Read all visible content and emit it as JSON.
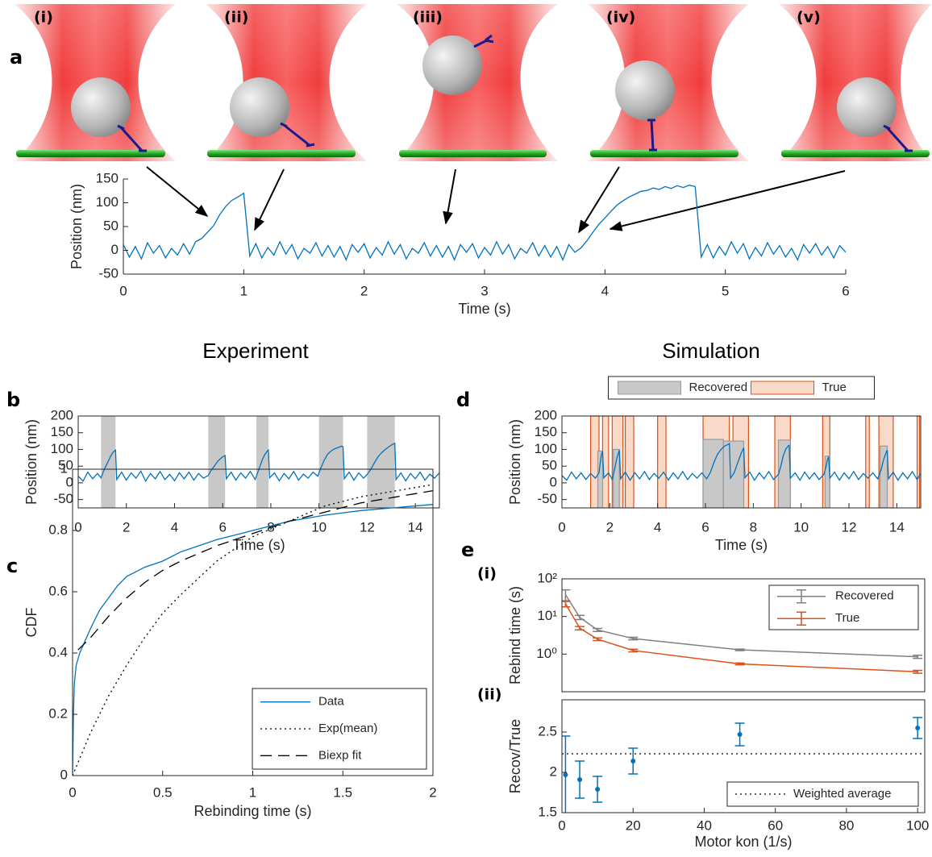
{
  "illustration_labels": [
    "(i)",
    "(ii)",
    "(iii)",
    "(iv)",
    "(v)"
  ],
  "section_titles": [
    "Experiment",
    "Simulation"
  ],
  "panel_labels": [
    "a",
    "b",
    "c",
    "d",
    "e",
    "(i)",
    "(ii)"
  ],
  "chart_data": [
    {
      "type": "line",
      "x_label": "Time (s)",
      "y_label": "Position (nm)",
      "xlim": [
        0,
        6
      ],
      "ylim": [
        -50,
        150
      ],
      "xticks": [
        0,
        1,
        2,
        3,
        4,
        5,
        6
      ],
      "yticks": [
        -50,
        0,
        50,
        100,
        150
      ],
      "box": false,
      "x": [
        0,
        0.05,
        0.1,
        0.15,
        0.2,
        0.25,
        0.3,
        0.35,
        0.4,
        0.45,
        0.5,
        0.55,
        0.6,
        0.65,
        0.7,
        0.75,
        0.8,
        0.85,
        0.9,
        0.95,
        1,
        1.05,
        1.1,
        1.15,
        1.2,
        1.25,
        1.3,
        1.35,
        1.4,
        1.45,
        1.5,
        1.55,
        1.6,
        1.65,
        1.7,
        1.75,
        1.8,
        1.85,
        1.9,
        1.95,
        2,
        2.05,
        2.1,
        2.15,
        2.2,
        2.25,
        2.3,
        2.35,
        2.4,
        2.45,
        2.5,
        2.55,
        2.6,
        2.65,
        2.7,
        2.75,
        2.8,
        2.85,
        2.9,
        2.95,
        3,
        3.05,
        3.1,
        3.15,
        3.2,
        3.25,
        3.3,
        3.35,
        3.4,
        3.45,
        3.5,
        3.55,
        3.6,
        3.65,
        3.7,
        3.75,
        3.8,
        3.85,
        3.9,
        3.95,
        4,
        4.05,
        4.1,
        4.15,
        4.2,
        4.25,
        4.3,
        4.35,
        4.4,
        4.45,
        4.5,
        4.55,
        4.6,
        4.65,
        4.7,
        4.75,
        4.8,
        4.85,
        4.9,
        4.95,
        5,
        5.05,
        5.1,
        5.15,
        5.2,
        5.25,
        5.3,
        5.35,
        5.4,
        5.45,
        5.5,
        5.55,
        5.6,
        5.65,
        5.7,
        5.75,
        5.8,
        5.85,
        5.9,
        5.95,
        6
      ],
      "series": [
        {
          "color": "#0072bd",
          "style": "solid",
          "values": [
            12,
            -14,
            8,
            -18,
            16,
            -6,
            10,
            -16,
            4,
            -10,
            14,
            -8,
            18,
            25,
            38,
            52,
            75,
            92,
            105,
            112,
            120,
            -12,
            14,
            -16,
            6,
            -10,
            18,
            -8,
            12,
            -18,
            4,
            -6,
            16,
            -12,
            10,
            -14,
            8,
            -20,
            12,
            -4,
            14,
            -16,
            6,
            -10,
            18,
            -8,
            12,
            -18,
            4,
            -6,
            16,
            -12,
            10,
            -14,
            8,
            -20,
            12,
            -4,
            14,
            -16,
            6,
            -10,
            18,
            -8,
            12,
            -18,
            4,
            -6,
            16,
            -12,
            10,
            -14,
            8,
            -20,
            12,
            -4,
            5,
            20,
            38,
            55,
            68,
            82,
            95,
            104,
            112,
            118,
            124,
            126,
            131,
            128,
            134,
            130,
            136,
            132,
            137,
            134,
            -14,
            12,
            -16,
            8,
            -10,
            18,
            -6,
            14,
            -18,
            6,
            -12,
            16,
            -8,
            10,
            -14,
            4,
            -20,
            12,
            -6,
            14,
            -10,
            8,
            -16,
            10,
            -4
          ]
        }
      ]
    },
    {
      "type": "line",
      "x_label": "Time (s)",
      "y_label": "Position (nm)",
      "xlim": [
        0,
        15
      ],
      "ylim": [
        -75,
        200
      ],
      "xticks": [
        0,
        2,
        4,
        6,
        8,
        10,
        12,
        14
      ],
      "yticks": [
        -50,
        0,
        50,
        100,
        150,
        200
      ],
      "box": true,
      "shaded": [
        [
          0.95,
          1.55
        ],
        [
          5.4,
          6.1
        ],
        [
          7.4,
          7.9
        ],
        [
          10,
          11
        ],
        [
          12,
          13.15
        ]
      ],
      "shaded_color": "#c8c8c8",
      "x": [
        0,
        0.2,
        0.4,
        0.6,
        0.8,
        0.95,
        1.05,
        1.15,
        1.25,
        1.35,
        1.45,
        1.55,
        1.6,
        1.8,
        2,
        2.2,
        2.4,
        2.6,
        2.8,
        3,
        3.2,
        3.4,
        3.6,
        3.8,
        4,
        4.2,
        4.4,
        4.6,
        4.8,
        5,
        5.2,
        5.4,
        5.5,
        5.6,
        5.7,
        5.8,
        5.9,
        6,
        6.1,
        6.15,
        6.35,
        6.55,
        6.75,
        6.95,
        7.15,
        7.35,
        7.45,
        7.55,
        7.65,
        7.75,
        7.85,
        7.9,
        7.95,
        8.15,
        8.35,
        8.55,
        8.75,
        8.95,
        9.15,
        9.35,
        9.55,
        9.75,
        9.95,
        10.05,
        10.2,
        10.35,
        10.5,
        10.65,
        10.8,
        10.95,
        11,
        11.05,
        11.25,
        11.45,
        11.65,
        11.85,
        12,
        12.15,
        12.3,
        12.45,
        12.6,
        12.75,
        12.9,
        13.05,
        13.15,
        13.2,
        13.4,
        13.6,
        13.8,
        14,
        14.2,
        14.4,
        14.6,
        14.8,
        15
      ],
      "series": [
        {
          "color": "#0072bd",
          "style": "solid",
          "values": [
            20,
            5,
            32,
            12,
            28,
            15,
            35,
            50,
            65,
            80,
            92,
            98,
            10,
            32,
            8,
            30,
            14,
            35,
            5,
            28,
            12,
            34,
            10,
            25,
            6,
            30,
            12,
            32,
            8,
            28,
            14,
            22,
            35,
            45,
            55,
            65,
            72,
            78,
            82,
            12,
            32,
            8,
            30,
            14,
            34,
            10,
            30,
            50,
            70,
            85,
            95,
            98,
            15,
            30,
            6,
            28,
            12,
            34,
            8,
            26,
            14,
            32,
            20,
            40,
            65,
            85,
            95,
            102,
            106,
            110,
            108,
            12,
            32,
            8,
            30,
            14,
            25,
            40,
            60,
            78,
            90,
            100,
            108,
            115,
            118,
            10,
            30,
            6,
            28,
            12,
            32,
            8,
            26,
            14,
            30
          ]
        }
      ]
    },
    {
      "type": "line",
      "x_label": "Rebinding time (s)",
      "y_label": "CDF",
      "xlim": [
        0,
        2
      ],
      "ylim": [
        0,
        1
      ],
      "xticks": [
        0,
        0.5,
        1,
        1.5,
        2
      ],
      "yticks": [
        0,
        0.2,
        0.4,
        0.6,
        0.8,
        1
      ],
      "box": true,
      "legend": "lower right",
      "series": [
        {
          "name": "Data",
          "color": "#0072bd",
          "style": "solid",
          "x": [
            0,
            0.005,
            0.01,
            0.02,
            0.04,
            0.07,
            0.1,
            0.15,
            0.2,
            0.25,
            0.3,
            0.4,
            0.5,
            0.6,
            0.7,
            0.8,
            0.9,
            1,
            1.2,
            1.4,
            1.6,
            1.8,
            2
          ],
          "values": [
            0,
            0.2,
            0.3,
            0.36,
            0.4,
            0.44,
            0.48,
            0.54,
            0.58,
            0.62,
            0.65,
            0.68,
            0.7,
            0.73,
            0.75,
            0.77,
            0.785,
            0.8,
            0.83,
            0.85,
            0.865,
            0.875,
            0.885
          ]
        },
        {
          "name": "Exp(mean)",
          "color": "#000000",
          "style": "dotted",
          "x": [
            0,
            0.1,
            0.2,
            0.3,
            0.4,
            0.5,
            0.6,
            0.8,
            1,
            1.2,
            1.4,
            1.6,
            1.8,
            2
          ],
          "values": [
            0,
            0.14,
            0.26,
            0.36,
            0.45,
            0.53,
            0.59,
            0.7,
            0.78,
            0.83,
            0.88,
            0.91,
            0.93,
            0.95
          ]
        },
        {
          "name": "Biexp fit",
          "color": "#000000",
          "style": "dashed",
          "x": [
            0.03,
            0.1,
            0.2,
            0.3,
            0.4,
            0.5,
            0.6,
            0.8,
            1,
            1.2,
            1.4,
            1.6,
            1.8,
            2
          ],
          "values": [
            0.41,
            0.45,
            0.52,
            0.58,
            0.63,
            0.67,
            0.7,
            0.75,
            0.79,
            0.83,
            0.86,
            0.89,
            0.91,
            0.93
          ]
        }
      ]
    },
    {
      "type": "line",
      "x_label": "Time (s)",
      "y_label": "Position (nm)",
      "xlim": [
        0,
        15
      ],
      "ylim": [
        -75,
        200
      ],
      "xticks": [
        0,
        2,
        4,
        6,
        8,
        10,
        12,
        14
      ],
      "yticks": [
        -50,
        0,
        50,
        100,
        150,
        200
      ],
      "box": true,
      "legend": "above",
      "regions": [
        {
          "name": "Recovered",
          "color": "#c8c8c8",
          "edge": "#9a9a9a",
          "starts": [
            1.5,
            2.15,
            5.9,
            6.75,
            9.05,
            11,
            13.3
          ],
          "ends": [
            1.7,
            2.4,
            6.75,
            7.6,
            9.55,
            11.2,
            13.6
          ],
          "heights": [
            95,
            100,
            130,
            125,
            128,
            80,
            110
          ]
        },
        {
          "name": "True",
          "color": "#f9d9c8",
          "edge": "#d95319",
          "starts": [
            1.2,
            1.7,
            2.1,
            2.65,
            4,
            5.9,
            7.15,
            8.9,
            10.9,
            12.7,
            13.25,
            14.85
          ],
          "ends": [
            1.55,
            1.95,
            2.55,
            3,
            4.35,
            7,
            7.8,
            9.55,
            11.2,
            12.85,
            13.85,
            14.95
          ]
        }
      ],
      "x": [
        0,
        0.2,
        0.4,
        0.6,
        0.8,
        1,
        1.2,
        1.4,
        1.55,
        1.6,
        1.65,
        1.7,
        1.75,
        1.95,
        2.1,
        2.2,
        2.3,
        2.4,
        2.45,
        2.65,
        2.85,
        3.05,
        3.25,
        3.45,
        3.65,
        3.85,
        4.05,
        4.25,
        4.45,
        4.65,
        4.85,
        5.05,
        5.25,
        5.45,
        5.65,
        5.85,
        6.05,
        6.2,
        6.35,
        6.5,
        6.65,
        6.8,
        6.95,
        7,
        7.05,
        7.2,
        7.35,
        7.5,
        7.6,
        7.65,
        7.85,
        8.05,
        8.25,
        8.45,
        8.65,
        8.85,
        9.05,
        9.15,
        9.25,
        9.35,
        9.45,
        9.5,
        9.55,
        9.75,
        9.95,
        10.15,
        10.35,
        10.55,
        10.75,
        10.95,
        11.05,
        11.1,
        11.15,
        11.2,
        11.4,
        11.6,
        11.8,
        12,
        12.2,
        12.4,
        12.6,
        12.8,
        13,
        13.2,
        13.35,
        13.45,
        13.55,
        13.6,
        13.65,
        13.85,
        14.05,
        14.25,
        14.45,
        14.65,
        14.85,
        15
      ],
      "series": [
        {
          "color": "#0072bd",
          "style": "solid",
          "values": [
            22,
            8,
            32,
            12,
            30,
            10,
            28,
            14,
            30,
            60,
            85,
            95,
            15,
            30,
            10,
            40,
            75,
            98,
            12,
            32,
            8,
            30,
            12,
            34,
            10,
            28,
            14,
            32,
            8,
            30,
            12,
            34,
            10,
            28,
            14,
            30,
            12,
            30,
            60,
            85,
            100,
            110,
            115,
            118,
            14,
            30,
            60,
            90,
            105,
            15,
            32,
            8,
            30,
            12,
            34,
            10,
            25,
            50,
            80,
            100,
            110,
            112,
            14,
            30,
            8,
            32,
            12,
            30,
            10,
            25,
            50,
            70,
            78,
            14,
            32,
            8,
            30,
            12,
            34,
            10,
            28,
            14,
            30,
            12,
            40,
            70,
            90,
            98,
            12,
            32,
            8,
            30,
            12,
            34,
            10,
            28
          ]
        }
      ]
    },
    {
      "type": "errorbar",
      "y_label": "Rebind time (s)",
      "xlim": [
        0,
        102
      ],
      "ylim": [
        0.1,
        100
      ],
      "ylog": true,
      "yticks": [
        {
          "value": 1,
          "label": "10⁰"
        },
        {
          "value": 10,
          "label": "10¹"
        },
        {
          "value": 100,
          "label": "10²"
        }
      ],
      "box": true,
      "legend": "upper right",
      "x": [
        1,
        5,
        10,
        20,
        50,
        100
      ],
      "series": [
        {
          "name": "Recovered",
          "color": "#7f7f7f",
          "line": true,
          "values": [
            38,
            9.5,
            4.4,
            2.6,
            1.3,
            0.85
          ],
          "errors": [
            13,
            1.2,
            0.4,
            0.2,
            0.06,
            0.08
          ]
        },
        {
          "name": "True",
          "color": "#d95319",
          "line": true,
          "values": [
            22,
            4.9,
            2.5,
            1.25,
            0.55,
            0.34
          ],
          "errors": [
            4,
            0.5,
            0.2,
            0.1,
            0.03,
            0.03
          ]
        }
      ]
    },
    {
      "type": "errorbar",
      "x_label": "Motor kon (1/s)",
      "y_label": "Recov/True",
      "xlim": [
        0,
        102
      ],
      "ylim": [
        1.5,
        2.9
      ],
      "xticks": [
        0,
        20,
        40,
        60,
        80,
        100
      ],
      "yticks": [
        1.5,
        2,
        2.5
      ],
      "box": true,
      "legend": "lower right",
      "x": [
        1,
        5,
        10,
        20,
        50,
        100
      ],
      "series": [
        {
          "color": "#0072bd",
          "line": false,
          "marker": true,
          "values": [
            1.97,
            1.91,
            1.79,
            2.14,
            2.47,
            2.55
          ],
          "errors": [
            0.48,
            0.23,
            0.16,
            0.16,
            0.14,
            0.13
          ]
        }
      ],
      "reference": {
        "name": "Weighted average",
        "value": 2.23,
        "color": "#000000",
        "style": "dotted"
      }
    }
  ]
}
